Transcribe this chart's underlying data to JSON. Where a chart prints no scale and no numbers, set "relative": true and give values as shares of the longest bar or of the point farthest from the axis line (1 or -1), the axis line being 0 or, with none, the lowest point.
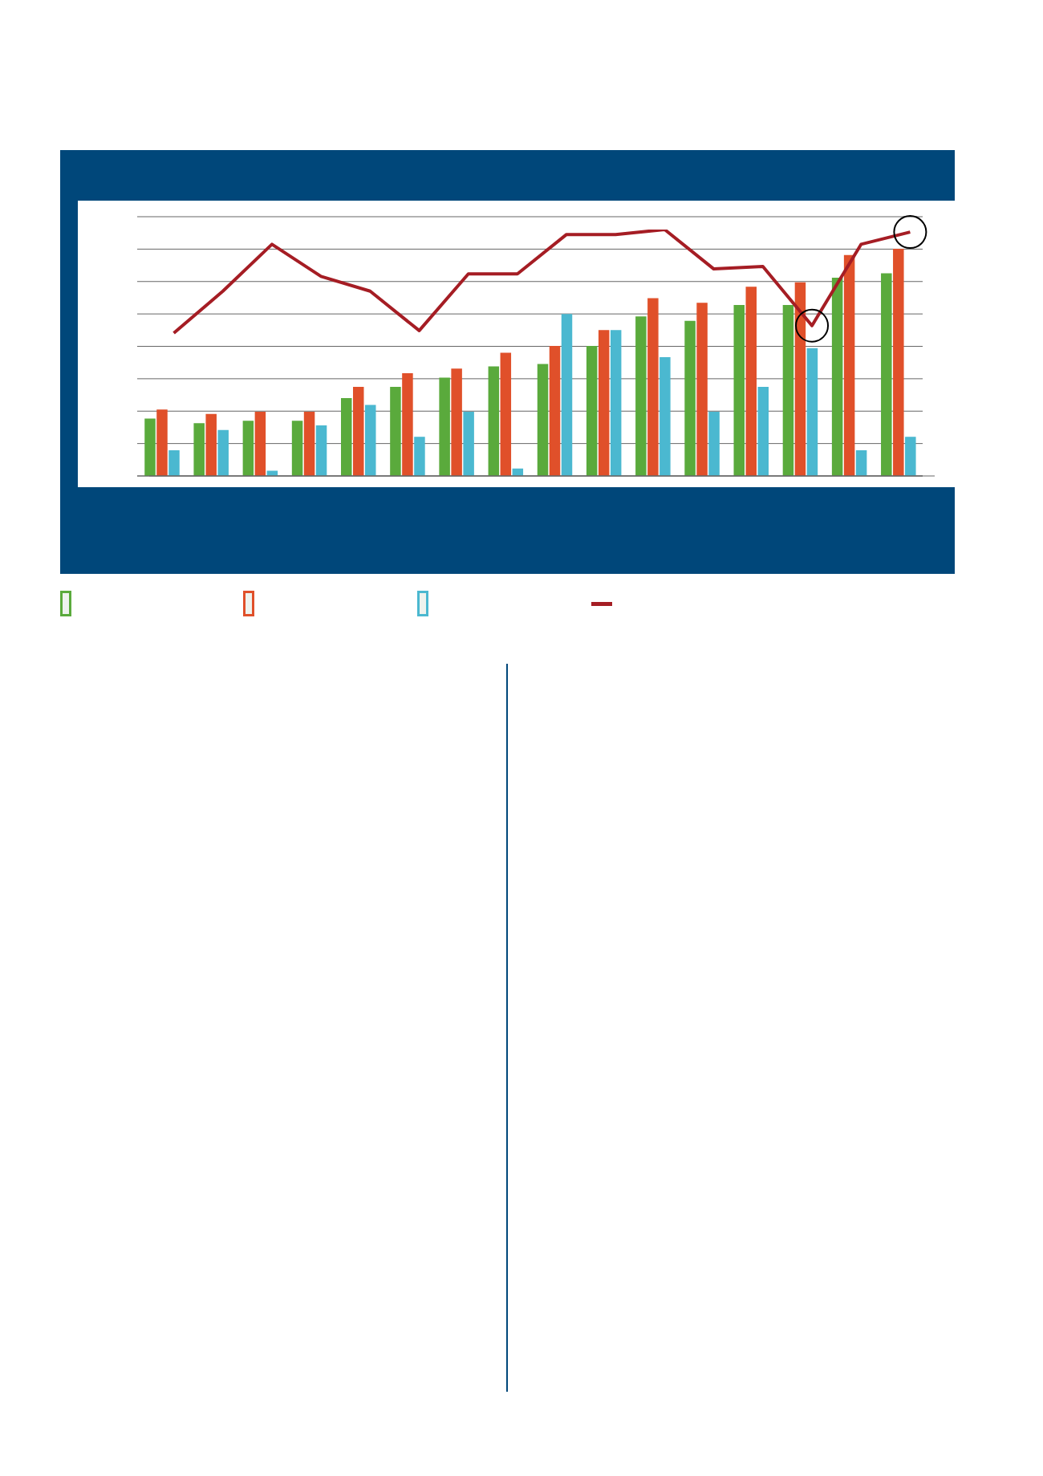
{
  "chart_data": [
    {
      "type": "bar",
      "relative": true,
      "grid": "y",
      "categories": [
        null,
        null,
        null,
        null,
        null,
        null,
        null,
        null,
        null,
        null,
        null,
        null,
        null,
        null,
        null,
        null
      ],
      "series": [
        {
          "color": "#5aaa3c",
          "values": [
            0.25,
            0.23,
            0.24,
            0.24,
            0.34,
            0.39,
            0.43,
            0.48,
            0.49,
            0.57,
            0.7,
            0.68,
            0.75,
            0.75,
            0.87,
            0.89
          ]
        },
        {
          "color": "#e0502a",
          "values": [
            0.29,
            0.27,
            0.28,
            0.28,
            0.39,
            0.45,
            0.47,
            0.54,
            0.57,
            0.64,
            0.78,
            0.76,
            0.83,
            0.85,
            0.97,
            1
          ]
        },
        {
          "color": "#4bb8d0",
          "values": [
            0.11,
            0.2,
            0.02,
            0.22,
            0.31,
            0.17,
            0.28,
            0.03,
            0.71,
            0.64,
            0.52,
            0.28,
            0.39,
            0.56,
            0.11,
            0.17
          ]
        }
      ]
    },
    {
      "type": "line",
      "relative": true,
      "marker": "none",
      "line_style": "solid",
      "categories": [
        null,
        null,
        null,
        null,
        null,
        null,
        null,
        null,
        null,
        null,
        null,
        null,
        null,
        null,
        null,
        null
      ],
      "series": [
        {
          "color": "#a51d24",
          "values": [
            0.58,
            0.75,
            0.94,
            0.81,
            0.75,
            0.59,
            0.82,
            0.82,
            0.98,
            0.98,
            1,
            0.84,
            0.85,
            0.61,
            0.94,
            0.99
          ]
        }
      ]
    }
  ]
}
